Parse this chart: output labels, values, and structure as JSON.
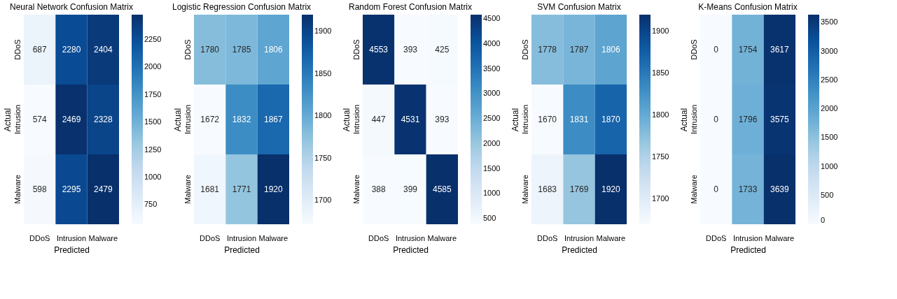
{
  "chart_data": [
    {
      "type": "heatmap",
      "title": "Neural Network Confusion Matrix",
      "xlabel": "Predicted",
      "ylabel": "Actual",
      "categories": [
        "DDoS",
        "Intrusion",
        "Malware"
      ],
      "y_categories": [
        "DDoS",
        "Intrusion",
        "Malware"
      ],
      "cells": [
        [
          687,
          2280,
          2404
        ],
        [
          574,
          2469,
          2328
        ],
        [
          598,
          2295,
          2479
        ]
      ],
      "clim": [
        574,
        2479
      ],
      "cticks": [
        750,
        1000,
        1250,
        1500,
        1750,
        2000,
        2250
      ],
      "data_labels": true
    },
    {
      "type": "heatmap",
      "title": "Logistic Regression Confusion Matrix",
      "xlabel": "Predicted",
      "ylabel": "Actual",
      "categories": [
        "DDoS",
        "Intrusion",
        "Malware"
      ],
      "y_categories": [
        "DDoS",
        "Intrusion",
        "Malware"
      ],
      "cells": [
        [
          1780,
          1785,
          1806
        ],
        [
          1672,
          1832,
          1867
        ],
        [
          1681,
          1771,
          1920
        ]
      ],
      "clim": [
        1672,
        1920
      ],
      "cticks": [
        1700,
        1750,
        1800,
        1850,
        1900
      ],
      "data_labels": true
    },
    {
      "type": "heatmap",
      "title": "Random Forest Confusion Matrix",
      "xlabel": "Predicted",
      "ylabel": "Actual",
      "categories": [
        "DDoS",
        "Intrusion",
        "Malware"
      ],
      "y_categories": [
        "DDoS",
        "Intrusion",
        "Malware"
      ],
      "cells": [
        [
          4553,
          393,
          425
        ],
        [
          447,
          4531,
          393
        ],
        [
          388,
          399,
          4585
        ]
      ],
      "clim": [
        388,
        4585
      ],
      "cticks": [
        500,
        1000,
        1500,
        2000,
        2500,
        3000,
        3500,
        4000,
        4500
      ],
      "data_labels": true
    },
    {
      "type": "heatmap",
      "title": "SVM Confusion Matrix",
      "xlabel": "Predicted",
      "ylabel": "Actual",
      "categories": [
        "DDoS",
        "Intrusion",
        "Malware"
      ],
      "y_categories": [
        "DDoS",
        "Intrusion",
        "Malware"
      ],
      "cells": [
        [
          1778,
          1787,
          1806
        ],
        [
          1670,
          1831,
          1870
        ],
        [
          1683,
          1769,
          1920
        ]
      ],
      "clim": [
        1670,
        1920
      ],
      "cticks": [
        1700,
        1750,
        1800,
        1850,
        1900
      ],
      "data_labels": true
    },
    {
      "type": "heatmap",
      "title": "K-Means Confusion Matrix",
      "xlabel": "Predicted",
      "ylabel": "Actual",
      "categories": [
        "DDoS",
        "Intrusion",
        "Malware"
      ],
      "y_categories": [
        "DDoS",
        "Intrusion",
        "Malware"
      ],
      "cells": [
        [
          0,
          1754,
          3617
        ],
        [
          0,
          1796,
          3575
        ],
        [
          0,
          1733,
          3639
        ]
      ],
      "clim": [
        0,
        3639
      ],
      "cticks": [
        0,
        500,
        1000,
        1500,
        2000,
        2500,
        3000,
        3500
      ],
      "data_labels": true
    }
  ]
}
